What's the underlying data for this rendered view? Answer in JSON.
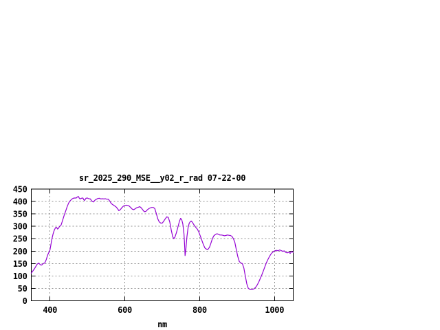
{
  "window": {
    "background": "#ffffff"
  },
  "chart": {
    "title": "sr_2025_290_MSE__y02_r_rad 07-22-00",
    "x_axis_label": "nm"
  },
  "chart_data": {
    "type": "line",
    "title": "sr_2025_290_MSE__y02_r_rad 07-22-00",
    "xlabel": "nm",
    "ylabel": "",
    "xlim": [
      350,
      1050
    ],
    "ylim": [
      0,
      450
    ],
    "xticks": [
      400,
      600,
      800,
      1000
    ],
    "yticks": [
      0,
      50,
      100,
      150,
      200,
      250,
      300,
      350,
      400,
      450
    ],
    "grid": true,
    "legend": false,
    "colors": {
      "line": "#9400D3",
      "grid": "#909090",
      "frame": "#000000",
      "text": "#000000"
    },
    "series": [
      {
        "name": "sr_2025_290_MSE__y02_r_rad",
        "x": [
          350,
          354,
          358,
          362,
          366,
          370,
          374,
          378,
          382,
          386,
          390,
          394,
          398,
          400,
          402,
          404,
          406,
          408,
          410,
          412,
          414,
          416,
          418,
          420,
          422,
          424,
          426,
          428,
          430,
          434,
          438,
          442,
          446,
          450,
          454,
          458,
          462,
          466,
          470,
          474,
          476,
          478,
          480,
          484,
          488,
          490,
          492,
          494,
          496,
          500,
          504,
          508,
          512,
          516,
          520,
          524,
          528,
          532,
          536,
          540,
          544,
          548,
          552,
          556,
          560,
          564,
          568,
          572,
          576,
          580,
          584,
          588,
          592,
          596,
          600,
          604,
          608,
          612,
          616,
          620,
          624,
          628,
          632,
          636,
          640,
          644,
          648,
          652,
          656,
          660,
          664,
          668,
          672,
          676,
          680,
          684,
          688,
          692,
          696,
          700,
          704,
          708,
          712,
          716,
          720,
          724,
          728,
          731,
          734,
          738,
          742,
          746,
          749,
          752,
          755,
          758,
          760,
          761,
          763,
          766,
          769,
          772,
          775,
          778,
          781,
          784,
          787,
          790,
          794,
          798,
          802,
          806,
          810,
          814,
          818,
          822,
          826,
          830,
          834,
          838,
          842,
          846,
          850,
          854,
          858,
          862,
          866,
          870,
          874,
          878,
          882,
          886,
          890,
          894,
          898,
          902,
          906,
          910,
          914,
          918,
          922,
          926,
          930,
          934,
          938,
          942,
          946,
          950,
          954,
          958,
          962,
          966,
          970,
          974,
          978,
          982,
          986,
          990,
          994,
          998,
          1002,
          1006,
          1010,
          1014,
          1018,
          1022,
          1026,
          1030,
          1034,
          1038,
          1042,
          1046,
          1050
        ],
        "y": [
          112,
          120,
          128,
          138,
          148,
          152,
          145,
          144,
          150,
          152,
          166,
          185,
          198,
          205,
          222,
          240,
          255,
          268,
          278,
          286,
          292,
          296,
          295,
          289,
          291,
          296,
          300,
          302,
          306,
          325,
          345,
          362,
          380,
          394,
          403,
          409,
          413,
          414,
          414,
          419,
          420,
          414,
          410,
          413,
          414,
          408,
          404,
          408,
          413,
          414,
          411,
          410,
          401,
          398,
          405,
          409,
          412,
          413,
          410,
          411,
          410,
          411,
          409,
          409,
          401,
          391,
          387,
          383,
          379,
          372,
          363,
          367,
          375,
          381,
          384,
          385,
          384,
          381,
          375,
          369,
          367,
          371,
          375,
          377,
          379,
          374,
          366,
          359,
          360,
          366,
          371,
          374,
          376,
          376,
          372,
          352,
          330,
          318,
          313,
          313,
          321,
          330,
          338,
          336,
          318,
          285,
          258,
          250,
          257,
          275,
          298,
          320,
          332,
          327,
          310,
          270,
          215,
          182,
          205,
          258,
          295,
          312,
          319,
          321,
          315,
          308,
          301,
          295,
          288,
          276,
          260,
          243,
          226,
          213,
          208,
          207,
          215,
          232,
          250,
          262,
          267,
          270,
          268,
          265,
          265,
          264,
          262,
          263,
          265,
          264,
          263,
          260,
          251,
          235,
          205,
          178,
          158,
          152,
          150,
          132,
          100,
          68,
          50,
          46,
          45,
          46,
          49,
          55,
          64,
          76,
          90,
          104,
          120,
          136,
          152,
          165,
          177,
          187,
          194,
          199,
          202,
          203,
          201,
          205,
          202,
          199,
          201,
          195,
          193,
          196,
          191,
          199,
          195
        ]
      }
    ]
  }
}
